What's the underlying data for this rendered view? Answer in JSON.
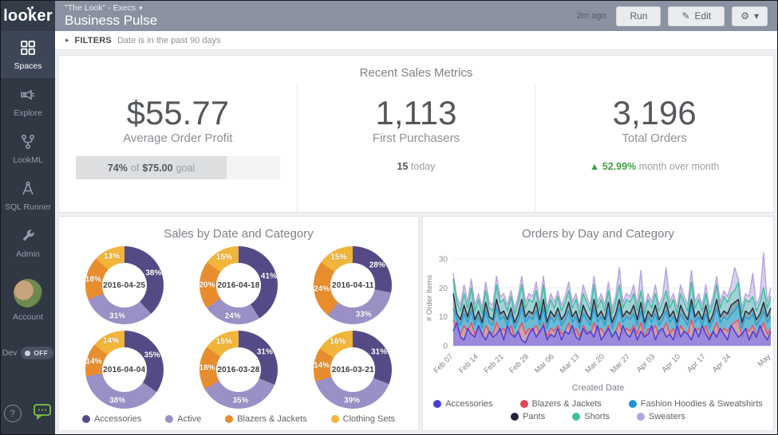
{
  "header": {
    "logo": "looker",
    "breadcrumb": "\"The Look\" - Execs",
    "title": "Business Pulse",
    "updated": "2m ago",
    "run_label": "Run",
    "edit_label": "Edit"
  },
  "icons": {
    "pencil": "✎",
    "gear": "⚙",
    "caret_down": "▾",
    "filter_expand": "▸",
    "delta_up": "▲",
    "help": "?"
  },
  "filters": {
    "label": "FILTERS",
    "value": "Date is in the past 90 days"
  },
  "sidebar": {
    "items": [
      {
        "label": "Spaces",
        "active": true
      },
      {
        "label": "Explore",
        "active": false
      },
      {
        "label": "LookML",
        "active": false
      },
      {
        "label": "SQL Runner",
        "active": false
      },
      {
        "label": "Admin",
        "active": false
      }
    ],
    "account_label": "Account",
    "dev_label": "Dev",
    "dev_state": "OFF"
  },
  "metrics": {
    "section_title": "Recent Sales Metrics",
    "cards": [
      {
        "value": "$55.77",
        "label": "Average Order Profit",
        "progress": {
          "percent": 74,
          "p1": "74%",
          "p2": "of",
          "p3": "$75.00",
          "p4": "goal"
        }
      },
      {
        "value": "1,113",
        "label": "First Purchasers",
        "note_strong": "15",
        "note": "today"
      },
      {
        "value": "3,196",
        "label": "Total Orders",
        "delta_value": "52.99%",
        "delta_note": "month over month",
        "delta_color": "#43a047"
      }
    ]
  },
  "chart_data": [
    {
      "type": "pie",
      "subtype": "donut-grid",
      "title": "Sales by Date and Category",
      "categories": [
        "Accessories",
        "Active",
        "Blazers & Jackets",
        "Clothing Sets"
      ],
      "colors": [
        "#564a86",
        "#9b90c6",
        "#e88d2e",
        "#f0b53a"
      ],
      "charts": [
        {
          "date": "2016-04-25",
          "values": [
            38,
            31,
            18,
            13
          ]
        },
        {
          "date": "2016-04-18",
          "values": [
            41,
            24,
            20,
            15
          ]
        },
        {
          "date": "2016-04-11",
          "values": [
            28,
            33,
            24,
            15
          ]
        },
        {
          "date": "2016-04-04",
          "values": [
            35,
            38,
            14,
            14
          ]
        },
        {
          "date": "2016-03-28",
          "values": [
            31,
            35,
            18,
            15
          ]
        },
        {
          "date": "2016-03-21",
          "values": [
            31,
            39,
            14,
            16
          ]
        }
      ]
    },
    {
      "type": "area",
      "title": "Orders by Day and Category",
      "xlabel": "Created Date",
      "ylabel": "# Order Items",
      "ylim": [
        0,
        33
      ],
      "yticks": [
        0,
        10,
        20,
        30
      ],
      "grid": true,
      "legend_position": "bottom",
      "xticks": [
        {
          "label": "Feb 07",
          "day": 0
        },
        {
          "label": "Feb 14",
          "day": 7
        },
        {
          "label": "Feb 21",
          "day": 14
        },
        {
          "label": "Feb 28",
          "day": 21
        },
        {
          "label": "Mar 06",
          "day": 28
        },
        {
          "label": "Mar 13",
          "day": 35
        },
        {
          "label": "Mar 20",
          "day": 42
        },
        {
          "label": "Mar 27",
          "day": 49
        },
        {
          "label": "Apr 03",
          "day": 56
        },
        {
          "label": "Apr 10",
          "day": 63
        },
        {
          "label": "Apr 17",
          "day": 70
        },
        {
          "label": "Apr 24",
          "day": 77
        },
        {
          "label": "May",
          "day": 88
        }
      ],
      "legend": [
        {
          "label": "Accessories",
          "color": "#4a3fd4"
        },
        {
          "label": "Blazers & Jackets",
          "color": "#e0455a"
        },
        {
          "label": "Fashion Hoodies & Sweatshirts",
          "color": "#2196d3"
        },
        {
          "label": "Pants",
          "color": "#23243a"
        },
        {
          "label": "Shorts",
          "color": "#3fbf9f"
        },
        {
          "label": "Sweaters",
          "color": "#b3a4dc"
        }
      ],
      "series": [
        {
          "name": "Sweaters",
          "color": "#b7a6de",
          "fill": "rgba(186,168,224,0.55)",
          "values": [
            25,
            17,
            14,
            21,
            15,
            23,
            14,
            18,
            13,
            22,
            15,
            14,
            24,
            17,
            18,
            14,
            19,
            13,
            17,
            24,
            15,
            18,
            17,
            22,
            14,
            24,
            13,
            18,
            15,
            19,
            14,
            17,
            22,
            15,
            18,
            13,
            21,
            17,
            14,
            24,
            15,
            18,
            14,
            22,
            13,
            17,
            27,
            15,
            18,
            17,
            21,
            14,
            26,
            13,
            18,
            15,
            21,
            14,
            17,
            27,
            15,
            18,
            13,
            21,
            17,
            14,
            26,
            15,
            18,
            14,
            21,
            13,
            17,
            24,
            15,
            19,
            17,
            21,
            27,
            23,
            13,
            18,
            17,
            25,
            14,
            17,
            32,
            15,
            20
          ]
        },
        {
          "name": "Shorts",
          "color": "#3fc0a0",
          "fill": "rgba(110,214,188,0.5)",
          "values": [
            23,
            15,
            12,
            18,
            13,
            20,
            12,
            16,
            11,
            19,
            13,
            12,
            21,
            15,
            16,
            12,
            17,
            11,
            15,
            21,
            13,
            16,
            15,
            19,
            12,
            21,
            11,
            16,
            13,
            17,
            12,
            15,
            19,
            13,
            16,
            11,
            18,
            15,
            12,
            21,
            13,
            16,
            12,
            19,
            11,
            15,
            21,
            13,
            16,
            15,
            18,
            12,
            19,
            11,
            16,
            13,
            18,
            12,
            15,
            19,
            13,
            16,
            11,
            18,
            15,
            12,
            22,
            13,
            16,
            12,
            18,
            11,
            15,
            21,
            13,
            17,
            15,
            18,
            19,
            22,
            11,
            16,
            15,
            17,
            12,
            15,
            20,
            13,
            17
          ]
        },
        {
          "name": "Pants",
          "color": "#2b2d3e",
          "fill": "rgba(43,45,62,0.25)",
          "values": [
            18,
            11,
            9,
            14,
            10,
            15,
            9,
            12,
            8,
            15,
            10,
            9,
            16,
            11,
            12,
            9,
            13,
            8,
            11,
            16,
            10,
            12,
            11,
            15,
            9,
            16,
            8,
            12,
            10,
            13,
            9,
            11,
            15,
            10,
            12,
            8,
            14,
            11,
            9,
            16,
            10,
            12,
            9,
            15,
            8,
            11,
            16,
            10,
            12,
            11,
            14,
            9,
            15,
            8,
            12,
            10,
            14,
            9,
            11,
            15,
            10,
            12,
            8,
            14,
            11,
            9,
            16,
            10,
            12,
            9,
            14,
            8,
            11,
            16,
            10,
            12,
            11,
            14,
            15,
            16,
            8,
            12,
            11,
            13,
            9,
            11,
            15,
            10,
            13
          ]
        },
        {
          "name": "Fashion Hoodies & Sweatshirts",
          "color": "#2a9fd8",
          "fill": "rgba(94,199,236,0.6)",
          "values": [
            13,
            9,
            7,
            11,
            8,
            12,
            7,
            10,
            6,
            12,
            8,
            7,
            13,
            9,
            10,
            7,
            11,
            6,
            9,
            13,
            8,
            10,
            9,
            12,
            7,
            13,
            6,
            10,
            8,
            11,
            7,
            9,
            12,
            8,
            10,
            6,
            11,
            9,
            7,
            13,
            8,
            10,
            7,
            12,
            6,
            9,
            13,
            8,
            10,
            9,
            11,
            7,
            12,
            6,
            10,
            8,
            11,
            7,
            9,
            12,
            8,
            10,
            6,
            11,
            9,
            7,
            14,
            8,
            10,
            7,
            11,
            6,
            9,
            13,
            8,
            10,
            9,
            11,
            12,
            14,
            6,
            10,
            9,
            11,
            7,
            9,
            12,
            8,
            10
          ]
        },
        {
          "name": "Blazers & Jackets",
          "color": "#e4556a",
          "fill": "rgba(246,153,153,0.7)",
          "values": [
            9,
            6,
            4,
            7,
            5,
            8,
            4,
            6,
            3,
            7,
            5,
            4,
            8,
            5,
            6,
            4,
            7,
            3,
            5,
            8,
            4,
            6,
            5,
            7,
            4,
            8,
            3,
            6,
            5,
            7,
            4,
            5,
            8,
            4,
            6,
            3,
            7,
            5,
            4,
            8,
            5,
            6,
            4,
            7,
            3,
            5,
            8,
            4,
            6,
            5,
            7,
            4,
            8,
            3,
            6,
            5,
            7,
            4,
            5,
            8,
            4,
            6,
            3,
            7,
            5,
            4,
            9,
            5,
            6,
            4,
            7,
            3,
            5,
            8,
            4,
            6,
            5,
            7,
            8,
            9,
            3,
            6,
            5,
            7,
            4,
            5,
            8,
            4,
            6
          ]
        },
        {
          "name": "Accessories",
          "color": "#4a3fd4",
          "fill": "rgba(136,127,238,0.72)",
          "values": [
            5,
            8,
            3,
            2,
            6,
            4,
            3,
            7,
            4,
            2,
            5,
            3,
            4,
            6,
            2,
            7,
            4,
            3,
            5,
            2,
            1,
            4,
            6,
            3,
            5,
            7,
            2,
            4,
            3,
            6,
            2,
            5,
            4,
            7,
            3,
            2,
            6,
            4,
            5,
            3,
            7,
            2,
            4,
            6,
            3,
            5,
            2,
            7,
            4,
            3,
            6,
            2,
            5,
            3,
            4,
            7,
            2,
            5,
            6,
            3,
            4,
            2,
            7,
            3,
            5,
            4,
            2,
            6,
            3,
            7,
            4,
            2,
            5,
            3,
            6,
            4,
            2,
            7,
            5,
            3,
            4,
            6,
            2,
            5,
            3,
            7,
            4,
            2,
            5
          ]
        }
      ]
    }
  ]
}
